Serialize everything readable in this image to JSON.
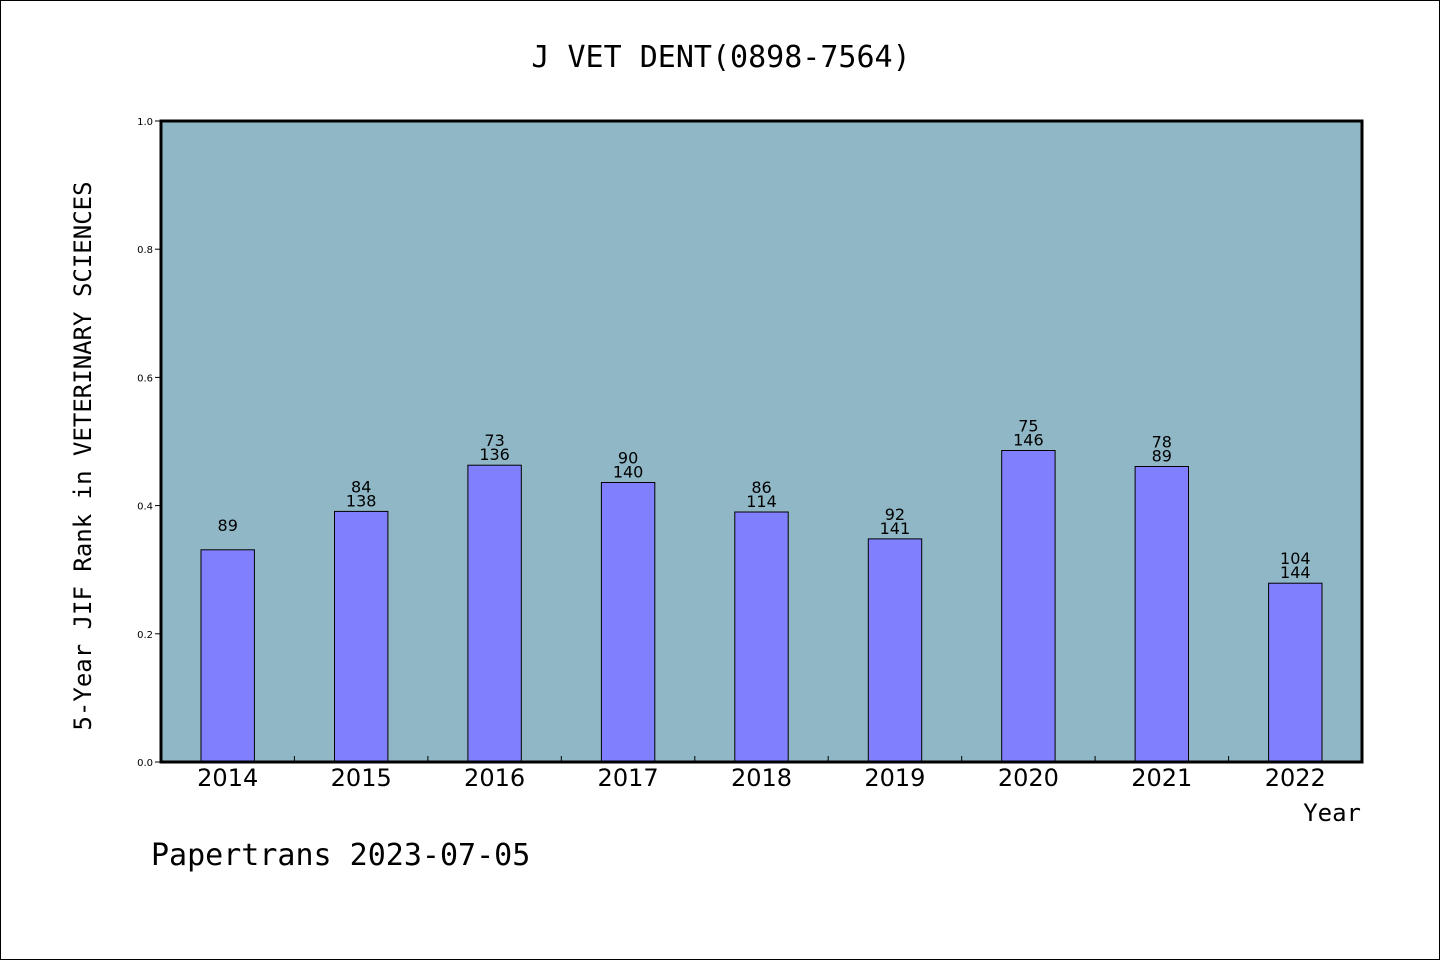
{
  "colors": {
    "plot_background": "#8fb7c5",
    "bar_fill": "#8080ff",
    "bar_stroke": "#000000",
    "axis": "#000000"
  },
  "footer": {
    "text": "Papertrans 2023-07-05"
  },
  "chart_data": {
    "type": "bar",
    "title": "J VET DENT(0898-7564)",
    "xlabel": "Year",
    "ylabel": "5-Year JIF Rank in VETERINARY SCIENCES",
    "ylim": [
      0,
      1.0
    ],
    "yticks": [
      "0.0",
      "0.2",
      "0.4",
      "0.6",
      "0.8",
      "1.0"
    ],
    "ytick_values": [
      0.0,
      0.2,
      0.4,
      0.6,
      0.8,
      1.0
    ],
    "grid": false,
    "categories": [
      "2014",
      "2015",
      "2016",
      "2017",
      "2018",
      "2019",
      "2020",
      "2021",
      "2022"
    ],
    "values": [
      0.331,
      0.391,
      0.463,
      0.436,
      0.39,
      0.348,
      0.486,
      0.461,
      0.279
    ],
    "labels_top": [
      "",
      "84",
      "73",
      "90",
      "86",
      "92",
      "75",
      "78",
      "104"
    ],
    "labels_bottom": [
      "89",
      "138",
      "136",
      "140",
      "114",
      "141",
      "146",
      "89",
      "144"
    ]
  }
}
